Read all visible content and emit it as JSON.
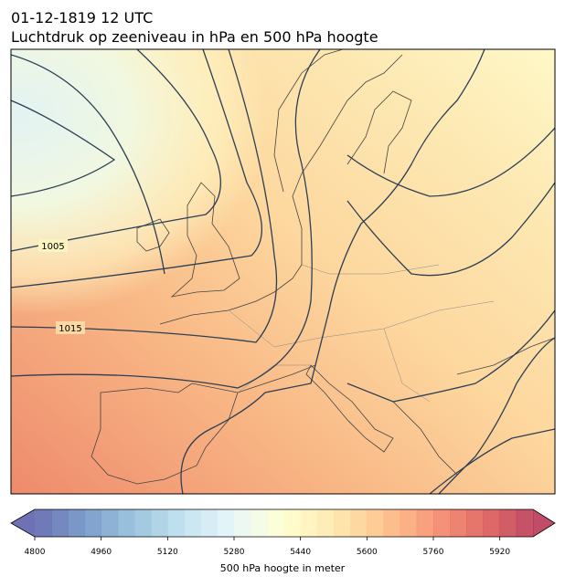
{
  "header": {
    "title": "01-12-1819 12 UTC",
    "subtitle": "Luchtdruk op zeeniveau in hPa en 500 hPa hoogte"
  },
  "map": {
    "contour_labels": [
      1005,
      1015
    ]
  },
  "colorbar": {
    "lim": [
      4800,
      6000
    ],
    "step": 40,
    "ticks": [
      4800,
      4960,
      5120,
      5280,
      5440,
      5600,
      5760,
      5920
    ],
    "label": "500 hPa hoogte in meter"
  }
}
